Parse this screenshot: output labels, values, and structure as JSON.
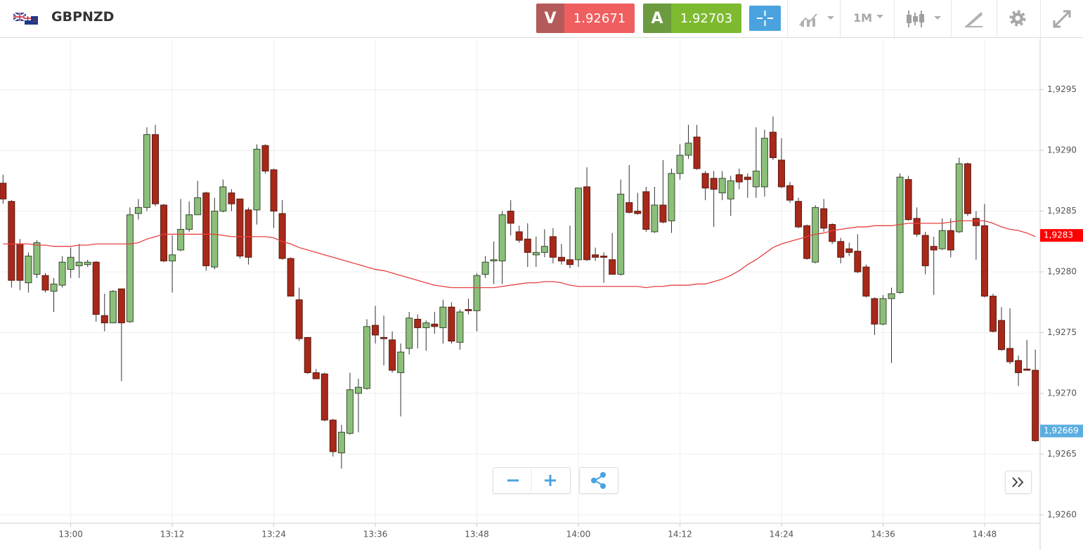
{
  "header": {
    "symbol": "GBPNZD",
    "sell": {
      "letter": "V",
      "price": 1.92671
    },
    "buy": {
      "letter": "A",
      "price": 1.92703
    },
    "timeframe": "1M"
  },
  "chart_data": {
    "type": "candlestick",
    "categories": [
      null,
      null,
      null,
      null,
      null,
      null,
      null,
      null,
      "13:00",
      null,
      null,
      null,
      null,
      null,
      null,
      null,
      null,
      null,
      null,
      null,
      "13:12",
      null,
      null,
      null,
      null,
      null,
      null,
      null,
      null,
      null,
      null,
      null,
      "13:24",
      null,
      null,
      null,
      null,
      null,
      null,
      null,
      null,
      null,
      null,
      null,
      "13:36",
      null,
      null,
      null,
      null,
      null,
      null,
      null,
      null,
      null,
      null,
      null,
      "13:48",
      null,
      null,
      null,
      null,
      null,
      null,
      null,
      null,
      null,
      null,
      null,
      "14:00",
      null,
      null,
      null,
      null,
      null,
      null,
      null,
      null,
      null,
      null,
      null,
      "14:12",
      null,
      null,
      null,
      null,
      null,
      null,
      null,
      null,
      null,
      null,
      null,
      "14:24",
      null,
      null,
      null,
      null,
      null,
      null,
      null,
      null,
      null,
      null,
      null,
      "14:36",
      null,
      null,
      null,
      null,
      null,
      null,
      null,
      null,
      null,
      null,
      null,
      "14:48",
      null,
      null,
      null,
      null,
      null,
      null
    ],
    "open": [
      1.92873,
      1.92858,
      1.92823,
      1.92791,
      1.92798,
      1.92797,
      1.92784,
      1.92789,
      1.92802,
      1.92805,
      1.92806,
      1.92808,
      1.92764,
      1.92758,
      1.92786,
      1.92759,
      1.92848,
      1.92853,
      1.92913,
      1.92855,
      1.92809,
      1.92818,
      1.92835,
      1.92847,
      1.92865,
      1.92804,
      1.9285,
      1.92865,
      1.9286,
      1.92851,
      1.92851,
      1.92904,
      1.92884,
      1.92848,
      1.92811,
      1.92777,
      1.92746,
      1.92717,
      1.92716,
      1.92678,
      1.92651,
      1.92667,
      1.927,
      1.92704,
      1.92756,
      1.92746,
      1.92744,
      1.92717,
      1.92737,
      1.92761,
      1.92754,
      1.92757,
      1.92754,
      1.92771,
      1.92742,
      1.92769,
      1.92768,
      1.92798,
      1.92809,
      1.92809,
      1.9285,
      1.92833,
      1.92827,
      1.92814,
      1.92816,
      1.92829,
      1.92812,
      1.9281,
      1.9281,
      1.9287,
      1.92814,
      1.92813,
      1.9281,
      1.92798,
      1.92857,
      1.9285,
      1.92866,
      1.92833,
      1.92855,
      1.92842,
      1.92881,
      1.92896,
      1.92911,
      1.92881,
      1.92877,
      1.92865,
      1.9286,
      1.9288,
      1.92878,
      1.9287,
      1.9287,
      1.92915,
      1.92892,
      1.92871,
      1.92858,
      1.92838,
      1.92808,
      1.92852,
      1.92839,
      1.92825,
      1.92819,
      1.92817,
      1.92804,
      1.92778,
      1.92757,
      1.92778,
      1.92783,
      1.92876,
      1.92844,
      1.9283,
      1.92821,
      1.92819,
      1.92834,
      1.92833,
      1.92889,
      1.92844,
      1.92838,
      1.9278,
      1.9276,
      1.92737,
      1.92727,
      1.9272,
      1.92719
    ],
    "high": [
      1.9288,
      1.92859,
      1.92827,
      1.92816,
      1.92826,
      1.92799,
      1.92795,
      1.92813,
      1.9282,
      1.92823,
      1.9281,
      1.92809,
      1.92782,
      1.92785,
      1.92786,
      1.92853,
      1.9286,
      1.92919,
      1.92921,
      1.92856,
      1.9283,
      1.9286,
      1.92858,
      1.92875,
      1.92866,
      1.92861,
      1.92876,
      1.92868,
      1.9286,
      1.92853,
      1.92905,
      1.92905,
      1.92885,
      1.92859,
      1.92812,
      1.92787,
      1.92746,
      1.9272,
      1.92717,
      1.92679,
      1.92674,
      1.92717,
      1.92712,
      1.92761,
      1.92772,
      1.92764,
      1.92751,
      1.92741,
      1.92767,
      1.92765,
      1.9276,
      1.92767,
      1.92777,
      1.92775,
      1.92769,
      1.92778,
      1.92799,
      1.92813,
      1.92825,
      1.9285,
      1.92859,
      1.92838,
      1.9284,
      1.92829,
      1.92835,
      1.92836,
      1.92823,
      1.92838,
      1.92869,
      1.92886,
      1.9282,
      1.92816,
      1.92832,
      1.92876,
      1.92888,
      1.92865,
      1.9287,
      1.9287,
      1.92892,
      1.92885,
      1.92905,
      1.92921,
      1.92921,
      1.92883,
      1.92883,
      1.92883,
      1.92879,
      1.92885,
      1.92881,
      1.92919,
      1.92917,
      1.92928,
      1.9291,
      1.92874,
      1.92861,
      1.92839,
      1.92855,
      1.9286,
      1.9284,
      1.92828,
      1.92824,
      1.92831,
      1.92806,
      1.92779,
      1.92781,
      1.92787,
      1.92881,
      1.92879,
      1.92853,
      1.92833,
      1.92829,
      1.92844,
      1.92844,
      1.92894,
      1.9289,
      1.9285,
      1.92856,
      1.92782,
      1.92771,
      1.9277,
      1.92731,
      1.92744,
      1.92736
    ],
    "low": [
      1.92856,
      1.92787,
      1.92785,
      1.92783,
      1.92795,
      1.92783,
      1.92767,
      1.92787,
      1.92795,
      1.92795,
      1.92804,
      1.92759,
      1.92751,
      1.92758,
      1.9271,
      1.92758,
      1.92843,
      1.9285,
      1.92854,
      1.92808,
      1.92783,
      1.92817,
      1.92833,
      1.92847,
      1.92801,
      1.92802,
      1.92849,
      1.9285,
      1.92811,
      1.92806,
      1.92839,
      1.92881,
      1.92836,
      1.9281,
      1.9278,
      1.92743,
      1.92716,
      1.92712,
      1.92677,
      1.92648,
      1.92638,
      1.92666,
      1.92668,
      1.92703,
      1.92741,
      1.92723,
      1.92717,
      1.92681,
      1.92732,
      1.92737,
      1.92735,
      1.92749,
      1.92741,
      1.92741,
      1.92736,
      1.92765,
      1.92751,
      1.92795,
      1.9279,
      1.9279,
      1.9283,
      1.92824,
      1.92804,
      1.92804,
      1.92812,
      1.92807,
      1.92806,
      1.92803,
      1.92804,
      1.92809,
      1.92809,
      1.92791,
      1.92798,
      1.92797,
      1.92848,
      1.92847,
      1.92833,
      1.92832,
      1.9284,
      1.92832,
      1.92876,
      1.92893,
      1.92884,
      1.92859,
      1.92837,
      1.92859,
      1.92846,
      1.92868,
      1.92861,
      1.92861,
      1.92862,
      1.92892,
      1.92869,
      1.92857,
      1.92836,
      1.9281,
      1.92807,
      1.92833,
      1.92823,
      1.92807,
      1.92813,
      1.92799,
      1.92779,
      1.92748,
      1.92756,
      1.92725,
      1.92782,
      1.92842,
      1.92829,
      1.92798,
      1.92781,
      1.92818,
      1.92812,
      1.92832,
      1.92846,
      1.9281,
      1.92779,
      1.9275,
      1.92735,
      1.92724,
      1.92706,
      1.92719,
      1.9266
    ],
    "close": [
      1.9286,
      1.92793,
      1.92793,
      1.92813,
      1.92824,
      1.92785,
      1.9279,
      1.92808,
      1.92812,
      1.92808,
      1.92808,
      1.92765,
      1.92758,
      1.92784,
      1.92758,
      1.92847,
      1.92853,
      1.92913,
      1.92856,
      1.92809,
      1.92814,
      1.92835,
      1.92847,
      1.92861,
      1.92805,
      1.9285,
      1.9287,
      1.92856,
      1.92813,
      1.92812,
      1.92901,
      1.92883,
      1.9285,
      1.92811,
      1.9278,
      1.92745,
      1.92717,
      1.92712,
      1.92678,
      1.92652,
      1.92668,
      1.92703,
      1.92705,
      1.92755,
      1.92748,
      1.92745,
      1.92719,
      1.92734,
      1.92762,
      1.92754,
      1.92758,
      1.92755,
      1.92771,
      1.92743,
      1.92767,
      1.92768,
      1.92797,
      1.92808,
      1.9281,
      1.92847,
      1.9284,
      1.92826,
      1.92816,
      1.92816,
      1.92821,
      1.92812,
      1.92809,
      1.92806,
      1.92869,
      1.9281,
      1.92812,
      1.92812,
      1.92798,
      1.92864,
      1.92849,
      1.92848,
      1.92835,
      1.92855,
      1.92841,
      1.92881,
      1.92896,
      1.92906,
      1.92885,
      1.92869,
      1.92868,
      1.92877,
      1.92875,
      1.92874,
      1.92876,
      1.92883,
      1.9291,
      1.92894,
      1.9287,
      1.92859,
      1.92837,
      1.92811,
      1.92853,
      1.92836,
      1.92825,
      1.92812,
      1.92816,
      1.928,
      1.9278,
      1.92757,
      1.92778,
      1.92782,
      1.92878,
      1.92843,
      1.92831,
      1.92805,
      1.92818,
      1.92834,
      1.92818,
      1.92889,
      1.92848,
      1.92838,
      1.9278,
      1.92751,
      1.92736,
      1.92726,
      1.92717,
      1.92719,
      1.92661
    ],
    "up_color": "#8cc07a",
    "down_color": "#a8281a",
    "moving_average": {
      "color": "#e84040",
      "values": [
        1.92823,
        1.92823,
        1.92823,
        1.92823,
        1.92822,
        1.92822,
        1.92821,
        1.92821,
        1.92821,
        1.92822,
        1.92822,
        1.92823,
        1.92823,
        1.92823,
        1.92823,
        1.92823,
        1.92824,
        1.92827,
        1.92829,
        1.92831,
        1.92831,
        1.92831,
        1.92831,
        1.92831,
        1.92831,
        1.92831,
        1.9283,
        1.92829,
        1.92829,
        1.92829,
        1.92829,
        1.92829,
        1.92828,
        1.92825,
        1.92823,
        1.9282,
        1.92818,
        1.92816,
        1.92814,
        1.92812,
        1.9281,
        1.92808,
        1.92806,
        1.92804,
        1.92802,
        1.92801,
        1.92799,
        1.92797,
        1.92795,
        1.92793,
        1.92791,
        1.92789,
        1.92788,
        1.92787,
        1.92787,
        1.92787,
        1.92787,
        1.92787,
        1.92787,
        1.92788,
        1.92789,
        1.9279,
        1.92791,
        1.92791,
        1.92792,
        1.92792,
        1.92791,
        1.92789,
        1.92788,
        1.92788,
        1.92788,
        1.92788,
        1.92788,
        1.92788,
        1.92788,
        1.92788,
        1.92787,
        1.92788,
        1.92788,
        1.92789,
        1.92789,
        1.92789,
        1.9279,
        1.9279,
        1.92792,
        1.92794,
        1.92797,
        1.92801,
        1.92806,
        1.9281,
        1.92815,
        1.9282,
        1.92823,
        1.92825,
        1.92827,
        1.92829,
        1.92831,
        1.92832,
        1.92834,
        1.92835,
        1.92836,
        1.92837,
        1.92837,
        1.92838,
        1.92838,
        1.92838,
        1.92839,
        1.9284,
        1.9284,
        1.9284,
        1.9284,
        1.9284,
        1.92841,
        1.92842,
        1.92842,
        1.92842,
        1.92842,
        1.9284,
        1.92837,
        1.92835,
        1.92834,
        1.92832,
        1.92829
      ]
    },
    "ylim": [
      1.92593,
      1.92992
    ],
    "yticks": [
      {
        "value": 1.926,
        "label": "1,9260"
      },
      {
        "value": 1.9265,
        "label": "1,9265"
      },
      {
        "value": 1.927,
        "label": "1,9270"
      },
      {
        "value": 1.9275,
        "label": "1,9275"
      },
      {
        "value": 1.928,
        "label": "1,9280"
      },
      {
        "value": 1.9285,
        "label": "1,9285"
      },
      {
        "value": 1.929,
        "label": "1,9290"
      },
      {
        "value": 1.9295,
        "label": "1,9295"
      }
    ],
    "grid": true,
    "price_labels": [
      {
        "value": 1.9283,
        "label": "1,9283",
        "color": "#ff0000"
      },
      {
        "value": 1.92669,
        "label": "1,92669",
        "color": "#5aaee0"
      }
    ]
  }
}
